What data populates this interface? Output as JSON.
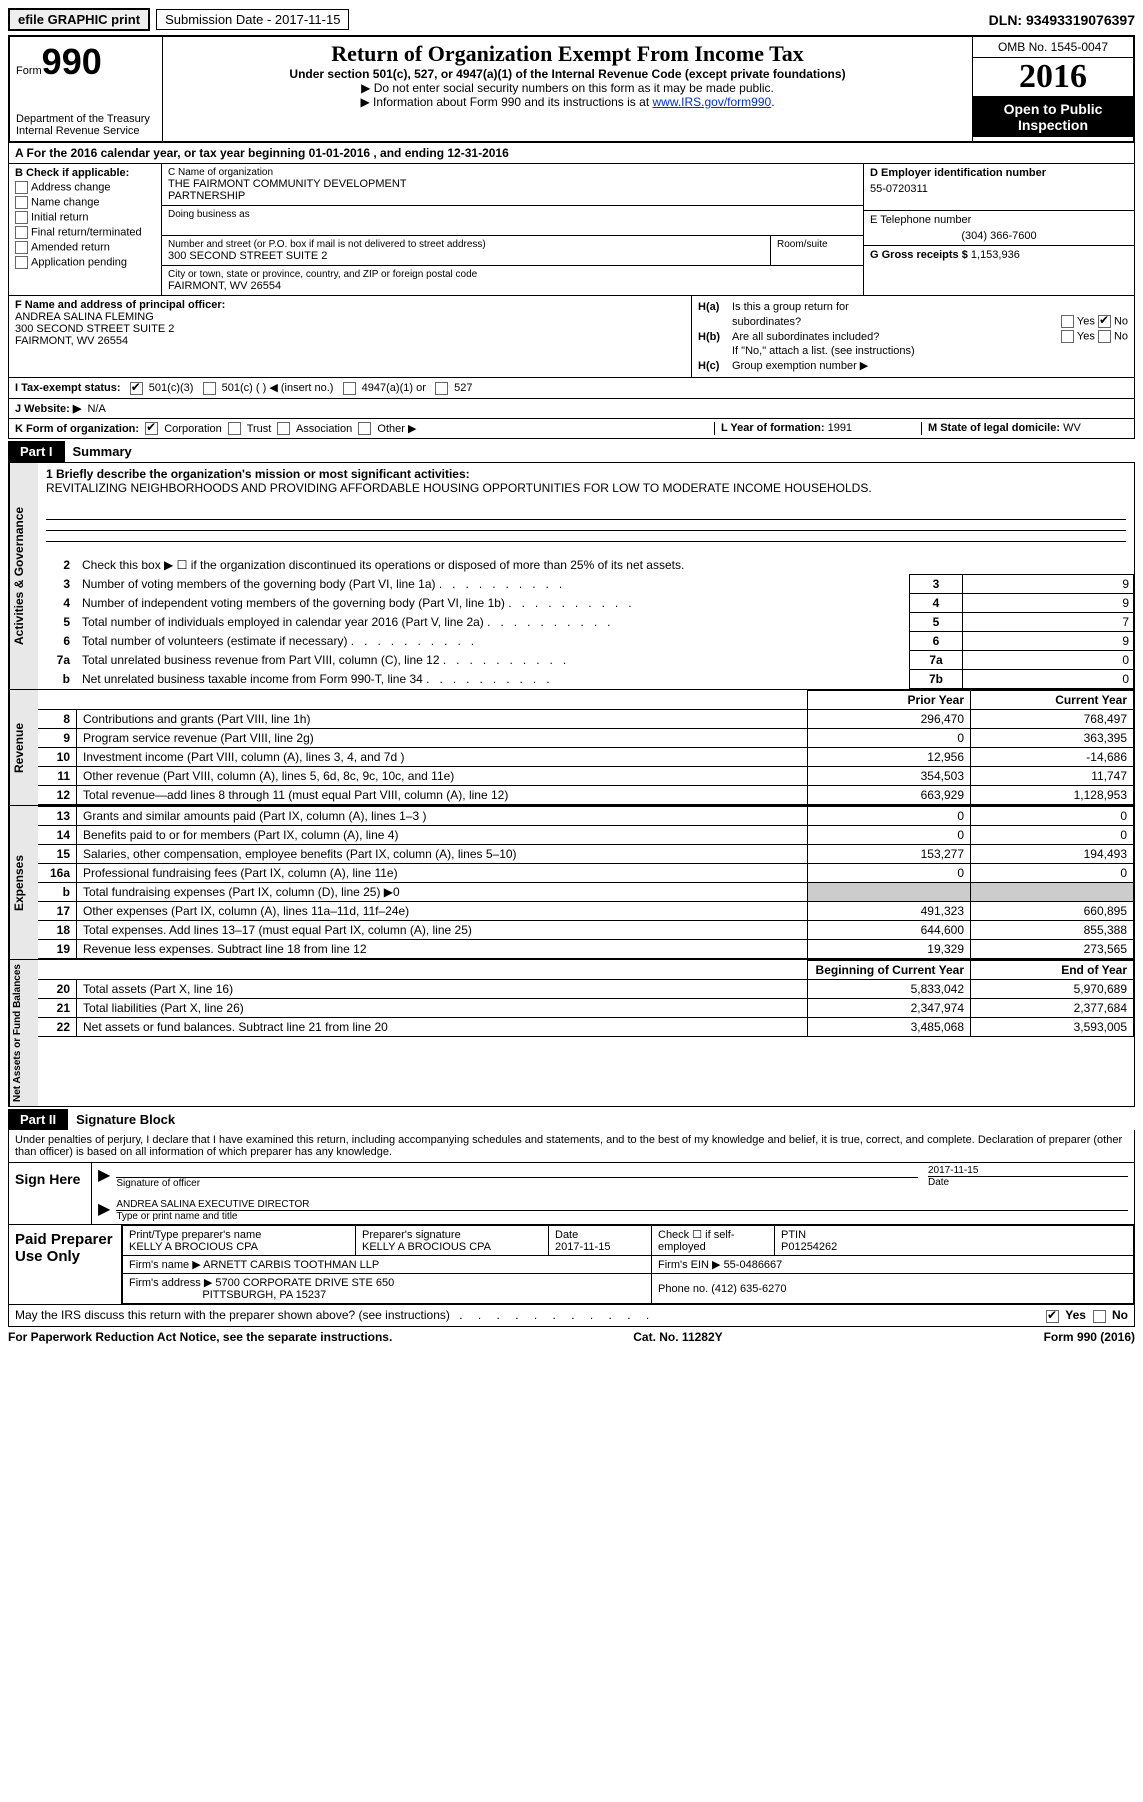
{
  "topbar": {
    "efile": "efile GRAPHIC print",
    "submission": "Submission Date - 2017-11-15",
    "dln": "DLN: 93493319076397"
  },
  "header": {
    "form_word": "Form",
    "form_num": "990",
    "dept1": "Department of the Treasury",
    "dept2": "Internal Revenue Service",
    "title": "Return of Organization Exempt From Income Tax",
    "subtitle": "Under section 501(c), 527, or 4947(a)(1) of the Internal Revenue Code (except private foundations)",
    "arrow1": "▶ Do not enter social security numbers on this form as it may be made public.",
    "arrow2_pre": "▶ Information about Form 990 and its instructions is at ",
    "arrow2_link": "www.IRS.gov/form990",
    "arrow2_post": ".",
    "omb": "OMB No. 1545-0047",
    "year": "2016",
    "otp1": "Open to Public",
    "otp2": "Inspection"
  },
  "row_a": "A  For the 2016 calendar year, or tax year beginning 01-01-2016    , and ending 12-31-2016",
  "section_b": {
    "label": "B Check if applicable:",
    "addr_change": "Address change",
    "name_change": "Name change",
    "initial": "Initial return",
    "final": "Final return/terminated",
    "amended": "Amended return",
    "app_pending": "Application pending"
  },
  "section_c": {
    "name_lbl": "C Name of organization",
    "name1": "THE FAIRMONT COMMUNITY DEVELOPMENT",
    "name2": "PARTNERSHIP",
    "dba_lbl": "Doing business as",
    "addr_lbl": "Number and street (or P.O. box if mail is not delivered to street address)",
    "room_lbl": "Room/suite",
    "addr": "300 SECOND STREET SUITE 2",
    "city_lbl": "City or town, state or province, country, and ZIP or foreign postal code",
    "city": "FAIRMONT, WV  26554"
  },
  "section_d": {
    "ein_lbl": "D Employer identification number",
    "ein": "55-0720311",
    "tel_lbl": "E Telephone number",
    "tel": "(304) 366-7600",
    "gross_lbl": "G Gross receipts $",
    "gross": "1,153,936"
  },
  "section_f": {
    "lbl": "F  Name and address of principal officer:",
    "name": "ANDREA SALINA FLEMING",
    "addr": "300 SECOND STREET SUITE 2",
    "city": "FAIRMONT, WV  26554"
  },
  "section_h": {
    "ha_lbl": "H(a)",
    "ha_text": "Is this a group return for",
    "ha_text2": "subordinates?",
    "hb_lbl": "H(b)",
    "hb_text": "Are all subordinates included?",
    "hb_note": "If \"No,\" attach a list. (see instructions)",
    "hc_lbl": "H(c)",
    "hc_text": "Group exemption number ▶",
    "yes": "Yes",
    "no": "No"
  },
  "row_i": {
    "lbl": "I  Tax-exempt status:",
    "c3": "501(c)(3)",
    "c": "501(c) (   ) ◀ (insert no.)",
    "a1": "4947(a)(1) or",
    "s527": "527"
  },
  "row_j": {
    "lbl": "J  Website: ▶",
    "val": "N/A"
  },
  "row_k": {
    "lbl": "K Form of organization:",
    "corp": "Corporation",
    "trust": "Trust",
    "assoc": "Association",
    "other": "Other ▶",
    "l_lbl": "L Year of formation:",
    "l_val": "1991",
    "m_lbl": "M State of legal domicile:",
    "m_val": "WV"
  },
  "parts": {
    "p1": "Part I",
    "p1_title": "Summary",
    "p2": "Part II",
    "p2_title": "Signature Block"
  },
  "sides": {
    "gov": "Activities & Governance",
    "rev": "Revenue",
    "exp": "Expenses",
    "net": "Net Assets or Fund Balances"
  },
  "mission": {
    "lbl": "1  Briefly describe the organization's mission or most significant activities:",
    "text": "REVITALIZING NEIGHBORHOODS AND PROVIDING AFFORDABLE HOUSING OPPORTUNITIES FOR LOW TO MODERATE INCOME HOUSEHOLDS."
  },
  "gov_lines": {
    "l2": "Check this box ▶ ☐  if the organization discontinued its operations or disposed of more than 25% of its net assets.",
    "l3": "Number of voting members of the governing body (Part VI, line 1a)",
    "l4": "Number of independent voting members of the governing body (Part VI, line 1b)",
    "l5": "Total number of individuals employed in calendar year 2016 (Part V, line 2a)",
    "l6": "Total number of volunteers (estimate if necessary)",
    "l7a": "Total unrelated business revenue from Part VIII, column (C), line 12",
    "l7b": "Net unrelated business taxable income from Form 990-T, line 34",
    "v3": "9",
    "v4": "9",
    "v5": "7",
    "v6": "9",
    "v7a": "0",
    "v7b": "0"
  },
  "fin_headers": {
    "py": "Prior Year",
    "cy": "Current Year",
    "bcy": "Beginning of Current Year",
    "eoy": "End of Year"
  },
  "rev_lines": [
    {
      "n": "8",
      "d": "Contributions and grants (Part VIII, line 1h)",
      "py": "296,470",
      "cy": "768,497"
    },
    {
      "n": "9",
      "d": "Program service revenue (Part VIII, line 2g)",
      "py": "0",
      "cy": "363,395"
    },
    {
      "n": "10",
      "d": "Investment income (Part VIII, column (A), lines 3, 4, and 7d )",
      "py": "12,956",
      "cy": "-14,686"
    },
    {
      "n": "11",
      "d": "Other revenue (Part VIII, column (A), lines 5, 6d, 8c, 9c, 10c, and 11e)",
      "py": "354,503",
      "cy": "11,747"
    },
    {
      "n": "12",
      "d": "Total revenue—add lines 8 through 11 (must equal Part VIII, column (A), line 12)",
      "py": "663,929",
      "cy": "1,128,953"
    }
  ],
  "exp_lines": [
    {
      "n": "13",
      "d": "Grants and similar amounts paid (Part IX, column (A), lines 1–3 )",
      "py": "0",
      "cy": "0"
    },
    {
      "n": "14",
      "d": "Benefits paid to or for members (Part IX, column (A), line 4)",
      "py": "0",
      "cy": "0"
    },
    {
      "n": "15",
      "d": "Salaries, other compensation, employee benefits (Part IX, column (A), lines 5–10)",
      "py": "153,277",
      "cy": "194,493"
    },
    {
      "n": "16a",
      "d": "Professional fundraising fees (Part IX, column (A), line 11e)",
      "py": "0",
      "cy": "0"
    },
    {
      "n": "b",
      "d": "Total fundraising expenses (Part IX, column (D), line 25) ▶0",
      "py": "",
      "cy": "",
      "gray": true
    },
    {
      "n": "17",
      "d": "Other expenses (Part IX, column (A), lines 11a–11d, 11f–24e)",
      "py": "491,323",
      "cy": "660,895"
    },
    {
      "n": "18",
      "d": "Total expenses. Add lines 13–17 (must equal Part IX, column (A), line 25)",
      "py": "644,600",
      "cy": "855,388"
    },
    {
      "n": "19",
      "d": "Revenue less expenses. Subtract line 18 from line 12",
      "py": "19,329",
      "cy": "273,565"
    }
  ],
  "net_lines": [
    {
      "n": "20",
      "d": "Total assets (Part X, line 16)",
      "py": "5,833,042",
      "cy": "5,970,689"
    },
    {
      "n": "21",
      "d": "Total liabilities (Part X, line 26)",
      "py": "2,347,974",
      "cy": "2,377,684"
    },
    {
      "n": "22",
      "d": "Net assets or fund balances. Subtract line 21 from line 20",
      "py": "3,485,068",
      "cy": "3,593,005"
    }
  ],
  "penalties": "Under penalties of perjury, I declare that I have examined this return, including accompanying schedules and statements, and to the best of my knowledge and belief, it is true, correct, and complete. Declaration of preparer (other than officer) is based on all information of which preparer has any knowledge.",
  "sign": {
    "block": "Sign Here",
    "sig_lbl": "Signature of officer",
    "date_lbl": "Date",
    "date_val": "2017-11-15",
    "name": "ANDREA SALINA  EXECUTIVE DIRECTOR",
    "name_lbl": "Type or print name and title"
  },
  "prep": {
    "block": "Paid Preparer Use Only",
    "name_lbl": "Print/Type preparer's name",
    "name": "KELLY A BROCIOUS CPA",
    "sig_lbl": "Preparer's signature",
    "sig": "KELLY A BROCIOUS CPA",
    "date_lbl": "Date",
    "date": "2017-11-15",
    "check_lbl": "Check ☐ if self-employed",
    "ptin_lbl": "PTIN",
    "ptin": "P01254262",
    "firm_lbl": "Firm's name      ▶",
    "firm": "ARNETT CARBIS TOOTHMAN LLP",
    "ein_lbl": "Firm's EIN ▶",
    "ein": "55-0486667",
    "addr_lbl": "Firm's address ▶",
    "addr": "5700 CORPORATE DRIVE STE 650",
    "addr2": "PITTSBURGH, PA  15237",
    "phone_lbl": "Phone no.",
    "phone": "(412) 635-6270"
  },
  "discuss": {
    "text": "May the IRS discuss this return with the preparer shown above? (see instructions)",
    "yes": "Yes",
    "no": "No"
  },
  "footer": {
    "pra": "For Paperwork Reduction Act Notice, see the separate instructions.",
    "cat": "Cat. No. 11282Y",
    "form": "Form 990 (2016)"
  }
}
